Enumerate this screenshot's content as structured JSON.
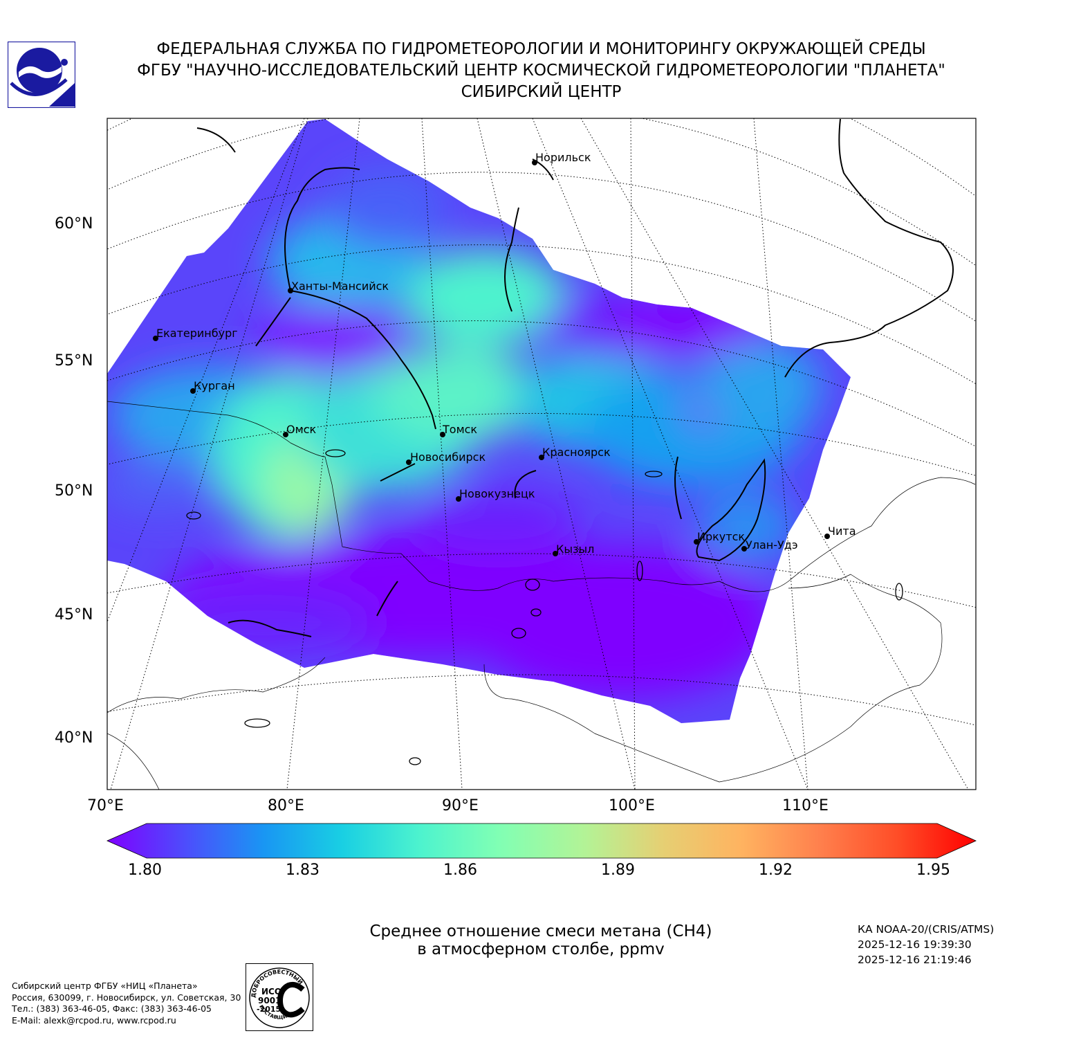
{
  "header": {
    "line1": "ФЕДЕРАЛЬНАЯ СЛУЖБА ПО ГИДРОМЕТЕОРОЛОГИИ И МОНИТОРИНГУ ОКРУЖАЮЩЕЙ СРЕДЫ",
    "line2": "ФГБУ \"НАУЧНО-ИССЛЕДОВАТЕЛЬСКИЙ ЦЕНТР КОСМИЧЕСКОЙ ГИДРОМЕТЕОРОЛОГИИ \"ПЛАНЕТА\"",
    "line3": "СИБИРСКИЙ ЦЕНТР"
  },
  "map": {
    "lat_labels": [
      "60°N",
      "55°N",
      "50°N",
      "45°N",
      "40°N"
    ],
    "lon_labels": [
      "70°E",
      "80°E",
      "90°E",
      "100°E",
      "110°E"
    ],
    "cities": [
      {
        "name": "Норильск"
      },
      {
        "name": "Ханты-Мансийск"
      },
      {
        "name": "Екатеринбург"
      },
      {
        "name": "Курган"
      },
      {
        "name": "Омск"
      },
      {
        "name": "Томск"
      },
      {
        "name": "Новосибирск"
      },
      {
        "name": "Красноярск"
      },
      {
        "name": "Новокузнецк"
      },
      {
        "name": "Иркутск"
      },
      {
        "name": "Улан-Удэ"
      },
      {
        "name": "Чита"
      },
      {
        "name": "Кызыл"
      }
    ]
  },
  "colorbar": {
    "min": 1.8,
    "max": 1.95,
    "tick_labels": [
      "1.80",
      "1.83",
      "1.86",
      "1.89",
      "1.92",
      "1.95"
    ],
    "colors": [
      "#7f00ff",
      "#4d4dfc",
      "#1996f3",
      "#19cfe3",
      "#4df3ce",
      "#80ffb4",
      "#b3f396",
      "#e6cf73",
      "#ffb360",
      "#ff804d",
      "#ff4d27",
      "#ff0000"
    ]
  },
  "title": {
    "line1": "Среднее отношение смеси метана (CH4)",
    "line2": "в атмосферном столбе, ppmv"
  },
  "satellite": {
    "instrument": "КА NOAA-20/(CRIS/ATMS)",
    "time_start": "2025-12-16 19:39:30",
    "time_end": "2025-12-16 21:19:46"
  },
  "footer": {
    "line1": "Сибирский центр ФГБУ «НИЦ «Планета»",
    "line2": "Россия, 630099, г. Новосибирск, ул. Советская, 30",
    "line3": "Тел.: (383) 363-46-05, Факс: (383) 363-46-05",
    "line4": "E-Mail: alexk@rcpod.ru, www.rcpod.ru"
  },
  "iso_badge": {
    "top_text": "ДОБРОСОВЕСТНЫЙ",
    "line1": "ИСО",
    "line2": "9001",
    "line3": "-2015",
    "bottom_text": "ПОСТАВЩИК"
  }
}
